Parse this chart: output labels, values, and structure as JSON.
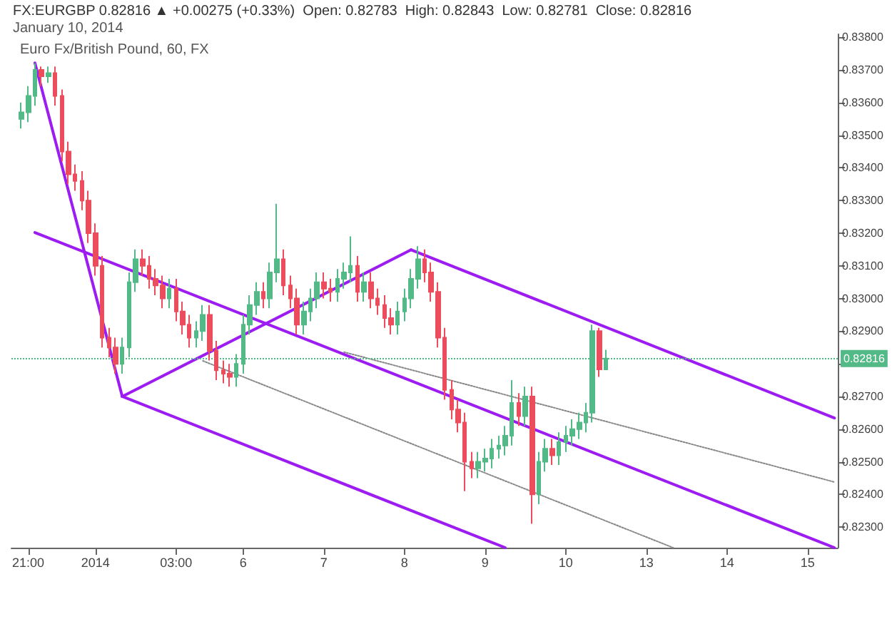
{
  "chart_data": {
    "type": "candlestick",
    "title": "FX:EURGBP 0.82816 ▲ +0.00275 (+0.33%)  Open: 0.82783  High: 0.82843  Low: 0.82781  Close: 0.82816",
    "subtitle": "January 10, 2014",
    "annotations": [
      "Euro Fx/British Pound, 60, FX"
    ],
    "categories": [
      null,
      null,
      "21:00",
      null,
      null,
      null,
      null,
      null,
      null,
      null,
      null,
      null,
      "2014",
      null,
      null,
      null,
      null,
      null,
      null,
      null,
      null,
      null,
      null,
      null,
      "03:00",
      null,
      null,
      null,
      null,
      null,
      null,
      null,
      null,
      null,
      "6",
      null,
      null,
      null,
      null,
      null,
      null,
      null,
      null,
      null,
      null,
      null,
      "7",
      null,
      null,
      null,
      null,
      null,
      null,
      null,
      null,
      null,
      null,
      null,
      "8",
      null,
      null,
      null,
      null,
      null,
      null,
      null,
      null,
      null,
      null,
      null,
      "9",
      null,
      null,
      null,
      null,
      null,
      null,
      null,
      null,
      null,
      null,
      null,
      "10",
      null,
      null,
      null,
      null,
      null,
      null,
      null,
      null,
      null,
      null,
      null,
      "13",
      null,
      null,
      null,
      null,
      null,
      null,
      null,
      null,
      null,
      null,
      null,
      "14",
      null,
      null,
      null,
      null,
      null,
      null,
      null,
      null,
      null,
      null,
      null,
      "15",
      null,
      null,
      null,
      null
    ],
    "ohlc": [
      null,
      [
        0.8355,
        0.836,
        0.8352,
        0.8357
      ],
      [
        0.8357,
        0.8365,
        0.8354,
        0.8362
      ],
      [
        0.8362,
        0.8372,
        0.8359,
        0.837
      ],
      [
        0.837,
        0.8371,
        0.8365,
        0.8368
      ],
      [
        0.8368,
        0.8371,
        0.8366,
        0.8369
      ],
      [
        0.8369,
        0.8371,
        0.8359,
        0.8362
      ],
      [
        0.8362,
        0.8364,
        0.8342,
        0.8345
      ],
      [
        0.8345,
        0.8348,
        0.8335,
        0.8338
      ],
      [
        0.8338,
        0.8341,
        0.8333,
        0.8336
      ],
      [
        0.8336,
        0.8339,
        0.8327,
        0.833
      ],
      [
        0.833,
        0.8333,
        0.8317,
        0.832
      ],
      [
        0.832,
        0.8323,
        0.8307,
        0.831
      ],
      [
        0.831,
        0.8313,
        0.8285,
        0.8288
      ],
      [
        0.8288,
        0.8291,
        0.8282,
        0.8285
      ],
      [
        0.8285,
        0.8288,
        0.8277,
        0.828
      ],
      [
        0.828,
        0.8288,
        0.8277,
        0.8285
      ],
      [
        0.8285,
        0.8308,
        0.8282,
        0.8305
      ],
      [
        0.8305,
        0.8315,
        0.8302,
        0.8312
      ],
      [
        0.8312,
        0.8315,
        0.8307,
        0.831
      ],
      [
        0.831,
        0.8313,
        0.8303,
        0.8306
      ],
      [
        0.8306,
        0.8309,
        0.8301,
        0.8304
      ],
      [
        0.8304,
        0.8307,
        0.8297,
        0.83
      ],
      [
        0.83,
        0.8306,
        0.8297,
        0.8303
      ],
      [
        0.8303,
        0.8306,
        0.8293,
        0.8296
      ],
      [
        0.8296,
        0.8299,
        0.8289,
        0.8292
      ],
      [
        0.8292,
        0.8295,
        0.8285,
        0.8288
      ],
      [
        0.8288,
        0.8293,
        0.8285,
        0.829
      ],
      [
        0.829,
        0.8298,
        0.8287,
        0.8295
      ],
      [
        0.8295,
        0.8298,
        0.8281,
        0.8284
      ],
      [
        0.8284,
        0.8287,
        0.8275,
        0.8278
      ],
      [
        0.8278,
        0.8281,
        0.8274,
        0.8277
      ],
      [
        0.8277,
        0.828,
        0.8273,
        0.8276
      ],
      [
        0.8276,
        0.8283,
        0.8273,
        0.828
      ],
      [
        0.828,
        0.8295,
        0.8277,
        0.8292
      ],
      [
        0.8292,
        0.8301,
        0.8289,
        0.8298
      ],
      [
        0.8298,
        0.8305,
        0.8295,
        0.8302
      ],
      [
        0.8302,
        0.8305,
        0.8297,
        0.83
      ],
      [
        0.83,
        0.8311,
        0.8297,
        0.8308
      ],
      [
        0.8308,
        0.8329,
        0.8305,
        0.8312
      ],
      [
        0.8312,
        0.8315,
        0.8301,
        0.8304
      ],
      [
        0.8304,
        0.8307,
        0.8297,
        0.83
      ],
      [
        0.83,
        0.8303,
        0.8289,
        0.8292
      ],
      [
        0.8292,
        0.8299,
        0.8289,
        0.8296
      ],
      [
        0.8296,
        0.8303,
        0.8293,
        0.83
      ],
      [
        0.83,
        0.8308,
        0.8297,
        0.8305
      ],
      [
        0.8305,
        0.8308,
        0.83,
        0.8303
      ],
      [
        0.8303,
        0.8306,
        0.8299,
        0.8302
      ],
      [
        0.8302,
        0.8309,
        0.8299,
        0.8306
      ],
      [
        0.8306,
        0.8311,
        0.8303,
        0.8308
      ],
      [
        0.8308,
        0.8319,
        0.8305,
        0.831
      ],
      [
        0.831,
        0.8313,
        0.8299,
        0.8302
      ],
      [
        0.8302,
        0.8308,
        0.8299,
        0.8305
      ],
      [
        0.8305,
        0.8308,
        0.8297,
        0.83
      ],
      [
        0.83,
        0.8303,
        0.8295,
        0.8298
      ],
      [
        0.8298,
        0.8301,
        0.8291,
        0.8294
      ],
      [
        0.8294,
        0.8297,
        0.8289,
        0.8292
      ],
      [
        0.8292,
        0.8299,
        0.8289,
        0.8296
      ],
      [
        0.8296,
        0.8303,
        0.8293,
        0.83
      ],
      [
        0.83,
        0.8309,
        0.8297,
        0.8306
      ],
      [
        0.8306,
        0.8316,
        0.8303,
        0.8312
      ],
      [
        0.8312,
        0.8315,
        0.8305,
        0.8308
      ],
      [
        0.8308,
        0.8311,
        0.8299,
        0.8302
      ],
      [
        0.8302,
        0.8305,
        0.8285,
        0.8288
      ],
      [
        0.8288,
        0.8291,
        0.8269,
        0.8272
      ],
      [
        0.8272,
        0.8275,
        0.8263,
        0.8266
      ],
      [
        0.8266,
        0.8269,
        0.8259,
        0.8262
      ],
      [
        0.8262,
        0.8265,
        0.8241,
        0.825
      ],
      [
        0.825,
        0.8253,
        0.8245,
        0.8248
      ],
      [
        0.8248,
        0.8253,
        0.8245,
        0.825
      ],
      [
        0.825,
        0.8254,
        0.8247,
        0.8251
      ],
      [
        0.8251,
        0.8257,
        0.8248,
        0.8254
      ],
      [
        0.8254,
        0.8258,
        0.8251,
        0.8255
      ],
      [
        0.8255,
        0.8261,
        0.8252,
        0.8258
      ],
      [
        0.8258,
        0.8275,
        0.8255,
        0.8268
      ],
      [
        0.8268,
        0.8271,
        0.8261,
        0.8264
      ],
      [
        0.8264,
        0.8273,
        0.8261,
        0.827
      ],
      [
        0.827,
        0.8273,
        0.8231,
        0.824
      ],
      [
        0.824,
        0.8253,
        0.8237,
        0.825
      ],
      [
        0.825,
        0.8257,
        0.8247,
        0.8254
      ],
      [
        0.8254,
        0.8257,
        0.8249,
        0.8252
      ],
      [
        0.8252,
        0.8259,
        0.8249,
        0.8256
      ],
      [
        0.8256,
        0.8261,
        0.8253,
        0.8258
      ],
      [
        0.8258,
        0.8263,
        0.8255,
        0.826
      ],
      [
        0.826,
        0.8265,
        0.8257,
        0.8262
      ],
      [
        0.8262,
        0.8268,
        0.8259,
        0.8265
      ],
      [
        0.8265,
        0.8292,
        0.8262,
        0.829
      ],
      [
        0.829,
        0.8291,
        0.8276,
        0.82783
      ],
      [
        0.82783,
        0.82843,
        0.82781,
        0.82816
      ],
      null,
      null,
      null,
      null,
      null,
      null,
      null,
      null,
      null,
      null,
      null,
      null,
      null,
      null,
      null,
      null,
      null,
      null,
      null,
      null,
      null,
      null,
      null,
      null,
      null,
      null,
      null,
      null,
      null,
      null,
      null,
      null,
      null,
      null
    ],
    "series": [
      {
        "type": "line",
        "color": "#9c1cf2",
        "values": [
          null,
          null,
          null,
          0.83721,
          null,
          null,
          null,
          null,
          null,
          null,
          null,
          null,
          null,
          null,
          null,
          null,
          0.827,
          null,
          null,
          null,
          null,
          null,
          null,
          null,
          null,
          null,
          null,
          null,
          null,
          null,
          null,
          null,
          null,
          null,
          null,
          null,
          null,
          null,
          null,
          null,
          null,
          null,
          null,
          null,
          null,
          null,
          null,
          null,
          null,
          null,
          null,
          null,
          null,
          null,
          null,
          null,
          null,
          null,
          null,
          null,
          null,
          null,
          null,
          null,
          null,
          null,
          null,
          null,
          null,
          null,
          null,
          null,
          null,
          null,
          null,
          null,
          null,
          null,
          null,
          null,
          null,
          null,
          null,
          null,
          null,
          null,
          null,
          null,
          null,
          null,
          null,
          null,
          null,
          null,
          null,
          null,
          null,
          null,
          null,
          null,
          null,
          null,
          null,
          null,
          null,
          null,
          null,
          null,
          null,
          null,
          null,
          null,
          null,
          null,
          null,
          null,
          null,
          null,
          null,
          null,
          null,
          null,
          null
        ]
      },
      {
        "type": "line",
        "color": "#9c1cf2",
        "values": [
          null,
          null,
          null,
          null,
          null,
          null,
          null,
          null,
          null,
          null,
          null,
          null,
          null,
          null,
          null,
          null,
          0.827,
          null,
          null,
          null,
          null,
          null,
          null,
          null,
          null,
          null,
          null,
          null,
          null,
          null,
          null,
          null,
          null,
          null,
          null,
          null,
          null,
          null,
          null,
          null,
          null,
          null,
          null,
          null,
          null,
          null,
          null,
          null,
          null,
          null,
          null,
          null,
          null,
          null,
          null,
          null,
          null,
          null,
          null,
          0.83149,
          null,
          null,
          null,
          null,
          null,
          null,
          null,
          null,
          null,
          null,
          null,
          null,
          null,
          null,
          null,
          null,
          null,
          null,
          null,
          null,
          null,
          null,
          null,
          null,
          null,
          null,
          null,
          null,
          null,
          null,
          null,
          null,
          null,
          null,
          null,
          null,
          null,
          null,
          null,
          null,
          null,
          null,
          null,
          null,
          null,
          null,
          null,
          null,
          null,
          null,
          null,
          null,
          null,
          null,
          null,
          null,
          null,
          null,
          null,
          null,
          null,
          null,
          null
        ]
      },
      {
        "type": "line",
        "color": "#9c1cf2",
        "values": [
          null,
          null,
          null,
          null,
          null,
          null,
          null,
          null,
          null,
          null,
          null,
          null,
          null,
          null,
          null,
          null,
          null,
          null,
          null,
          null,
          null,
          null,
          null,
          null,
          null,
          null,
          null,
          null,
          null,
          null,
          null,
          null,
          null,
          null,
          null,
          null,
          null,
          null,
          null,
          null,
          null,
          null,
          null,
          null,
          null,
          null,
          null,
          null,
          null,
          null,
          null,
          null,
          null,
          null,
          null,
          null,
          null,
          null,
          null,
          0.83149,
          null,
          null,
          null,
          null,
          null,
          null,
          null,
          null,
          null,
          null,
          null,
          null,
          null,
          null,
          null,
          null,
          null,
          null,
          null,
          null,
          null,
          null,
          null,
          null,
          null,
          null,
          null,
          null,
          null,
          null,
          null,
          null,
          null,
          null,
          null,
          null,
          null,
          null,
          null,
          null,
          null,
          null,
          null,
          null,
          null,
          null,
          null,
          null,
          null,
          null,
          null,
          null,
          null,
          null,
          null,
          null,
          null,
          null,
          null,
          null,
          null,
          null,
          0.82634
        ]
      },
      {
        "type": "line",
        "color": "#9c1cf2",
        "values": [
          null,
          null,
          null,
          null,
          null,
          null,
          null,
          null,
          null,
          null,
          null,
          null,
          null,
          null,
          null,
          null,
          0.827,
          null,
          null,
          null,
          null,
          null,
          null,
          null,
          null,
          null,
          null,
          null,
          null,
          null,
          null,
          null,
          null,
          null,
          null,
          null,
          null,
          null,
          null,
          null,
          null,
          null,
          null,
          null,
          null,
          null,
          null,
          null,
          null,
          null,
          null,
          null,
          null,
          null,
          null,
          null,
          null,
          null,
          null,
          null,
          null,
          null,
          null,
          null,
          null,
          null,
          null,
          null,
          null,
          null,
          null,
          null,
          null,
          0.82237,
          null,
          null,
          null,
          null,
          null,
          null,
          null,
          null,
          null,
          null,
          null,
          null,
          null,
          null,
          null,
          null,
          null,
          null,
          null,
          null,
          null,
          null,
          null,
          null,
          null,
          null,
          null,
          null,
          null,
          null,
          null,
          null,
          null,
          null,
          null,
          null,
          null,
          null,
          null,
          null,
          null,
          null,
          null,
          null,
          null,
          null,
          null,
          null,
          null
        ]
      },
      {
        "type": "line",
        "color": "#9c1cf2",
        "values": [
          null,
          null,
          null,
          0.83202,
          null,
          null,
          null,
          null,
          null,
          null,
          null,
          null,
          null,
          null,
          null,
          null,
          null,
          null,
          null,
          null,
          null,
          null,
          null,
          null,
          null,
          null,
          null,
          null,
          null,
          null,
          null,
          null,
          null,
          null,
          null,
          null,
          null,
          null,
          null,
          null,
          null,
          null,
          null,
          null,
          null,
          null,
          null,
          null,
          null,
          null,
          null,
          null,
          null,
          null,
          null,
          null,
          null,
          null,
          null,
          null,
          null,
          null,
          null,
          null,
          null,
          null,
          null,
          null,
          null,
          null,
          null,
          null,
          null,
          null,
          null,
          null,
          null,
          null,
          null,
          null,
          null,
          null,
          null,
          null,
          null,
          null,
          null,
          null,
          null,
          null,
          null,
          null,
          null,
          null,
          null,
          null,
          null,
          null,
          null,
          null,
          null,
          null,
          null,
          null,
          null,
          null,
          null,
          null,
          null,
          null,
          null,
          null,
          null,
          null,
          null,
          null,
          null,
          null,
          null,
          null,
          null,
          null,
          0.82237
        ]
      },
      {
        "type": "line",
        "color": "#888888",
        "line_style": "dotted",
        "values": [
          null,
          null,
          null,
          null,
          null,
          null,
          null,
          null,
          null,
          null,
          null,
          null,
          null,
          null,
          null,
          null,
          null,
          null,
          null,
          null,
          null,
          null,
          null,
          null,
          null,
          null,
          null,
          null,
          null,
          null,
          null,
          null,
          null,
          null,
          null,
          null,
          null,
          null,
          null,
          null,
          null,
          null,
          null,
          null,
          null,
          null,
          null,
          null,
          null,
          0.82836,
          null,
          null,
          null,
          null,
          null,
          null,
          null,
          null,
          null,
          null,
          null,
          null,
          null,
          null,
          null,
          null,
          null,
          null,
          null,
          null,
          null,
          null,
          null,
          null,
          null,
          null,
          null,
          null,
          null,
          null,
          null,
          null,
          null,
          null,
          null,
          null,
          null,
          null,
          null,
          null,
          null,
          null,
          null,
          null,
          null,
          null,
          null,
          null,
          null,
          null,
          null,
          null,
          null,
          null,
          null,
          null,
          null,
          null,
          null,
          null,
          null,
          null,
          null,
          null,
          null,
          null,
          null,
          null,
          null,
          null,
          null,
          null,
          0.82438
        ]
      },
      {
        "type": "line",
        "color": "#888888",
        "line_style": "dotted",
        "values": [
          null,
          null,
          null,
          null,
          null,
          null,
          null,
          null,
          null,
          null,
          null,
          null,
          null,
          null,
          null,
          null,
          null,
          null,
          null,
          null,
          null,
          null,
          null,
          null,
          null,
          null,
          null,
          null,
          0.82809,
          null,
          null,
          null,
          null,
          null,
          null,
          null,
          null,
          null,
          null,
          null,
          null,
          null,
          null,
          null,
          null,
          null,
          null,
          null,
          null,
          null,
          null,
          null,
          null,
          null,
          null,
          null,
          null,
          null,
          null,
          null,
          null,
          null,
          null,
          null,
          null,
          null,
          null,
          null,
          null,
          null,
          null,
          null,
          null,
          null,
          null,
          null,
          null,
          null,
          null,
          null,
          null,
          null,
          null,
          null,
          null,
          null,
          null,
          null,
          null,
          null,
          null,
          null,
          null,
          null,
          null,
          null,
          null,
          null,
          0.82237,
          null,
          null,
          null,
          null,
          null,
          null,
          null,
          null,
          null,
          null,
          null,
          null,
          null,
          null,
          null,
          null,
          null,
          null,
          null,
          null,
          null,
          null,
          null,
          null
        ]
      }
    ],
    "ref_lines": [
      {
        "axis": "y",
        "value": 0.82816,
        "label": "0.82816",
        "color": "#53b987",
        "line_style": "dotted"
      }
    ],
    "ylim": [
      0.82237,
      0.83809
    ],
    "yticks": [
      {
        "value": 0.823,
        "label": "0.82300"
      },
      {
        "value": 0.824,
        "label": "0.82400"
      },
      {
        "value": 0.825,
        "label": "0.82500"
      },
      {
        "value": 0.826,
        "label": "0.82600"
      },
      {
        "value": 0.827,
        "label": "0.82700"
      },
      {
        "value": 0.828,
        "label": null
      },
      {
        "value": 0.829,
        "label": "0.82900"
      },
      {
        "value": 0.83,
        "label": "0.83000"
      },
      {
        "value": 0.831,
        "label": "0.83100"
      },
      {
        "value": 0.832,
        "label": "0.83200"
      },
      {
        "value": 0.833,
        "label": "0.83300"
      },
      {
        "value": 0.834,
        "label": "0.83400"
      },
      {
        "value": 0.835,
        "label": "0.83500"
      },
      {
        "value": 0.836,
        "label": "0.83600"
      },
      {
        "value": 0.837,
        "label": "0.83700"
      },
      {
        "value": 0.838,
        "label": "0.83800"
      }
    ],
    "grid": false,
    "marker": "none"
  }
}
